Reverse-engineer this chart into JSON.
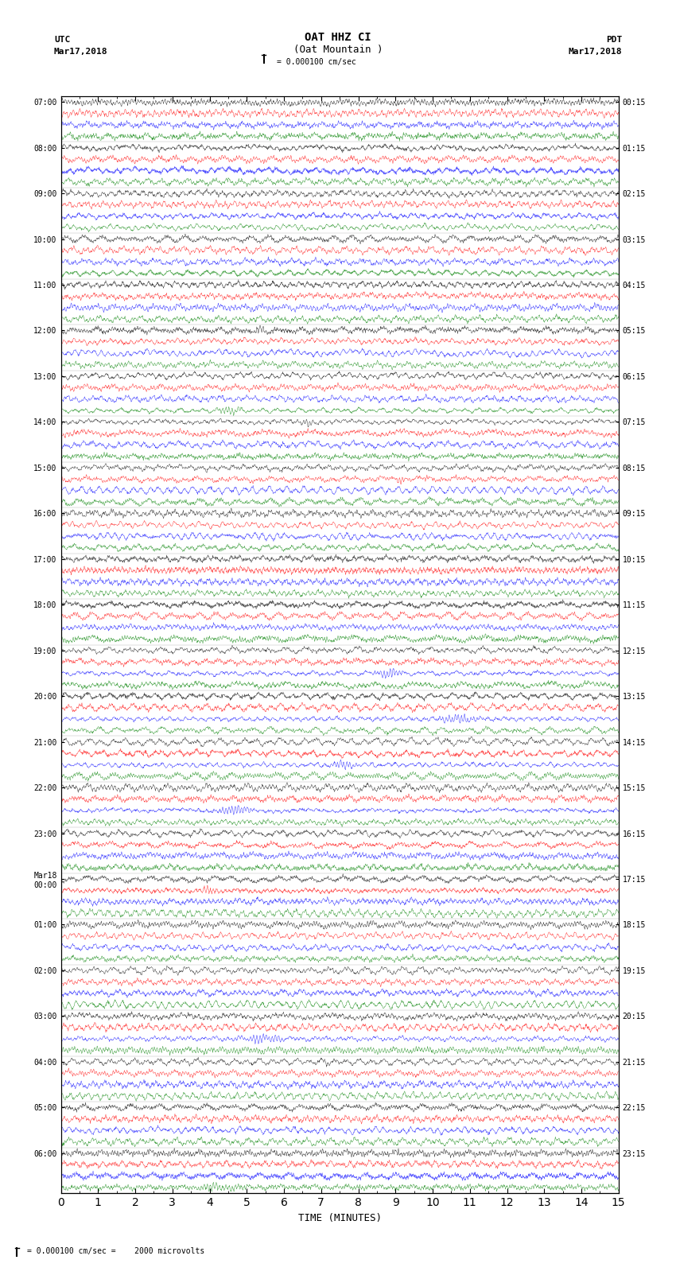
{
  "title_line1": "OAT HHZ CI",
  "title_line2": "(Oat Mountain )",
  "scale_text": "= 0.000100 cm/sec",
  "bottom_text": "= 0.000100 cm/sec =    2000 microvolts",
  "left_label": "UTC",
  "left_date": "Mar17,2018",
  "right_label": "PDT",
  "right_date": "Mar17,2018",
  "xlabel": "TIME (MINUTES)",
  "utc_times": [
    "07:00",
    "",
    "",
    "",
    "08:00",
    "",
    "",
    "",
    "09:00",
    "",
    "",
    "",
    "10:00",
    "",
    "",
    "",
    "11:00",
    "",
    "",
    "",
    "12:00",
    "",
    "",
    "",
    "13:00",
    "",
    "",
    "",
    "14:00",
    "",
    "",
    "",
    "15:00",
    "",
    "",
    "",
    "16:00",
    "",
    "",
    "",
    "17:00",
    "",
    "",
    "",
    "18:00",
    "",
    "",
    "",
    "19:00",
    "",
    "",
    "",
    "20:00",
    "",
    "",
    "",
    "21:00",
    "",
    "",
    "",
    "22:00",
    "",
    "",
    "",
    "23:00",
    "",
    "",
    "",
    "Mar18\n00:00",
    "",
    "",
    "",
    "01:00",
    "",
    "",
    "",
    "02:00",
    "",
    "",
    "",
    "03:00",
    "",
    "",
    "",
    "04:00",
    "",
    "",
    "",
    "05:00",
    "",
    "",
    "",
    "06:00",
    "",
    "",
    ""
  ],
  "pdt_times": [
    "00:15",
    "",
    "",
    "",
    "01:15",
    "",
    "",
    "",
    "02:15",
    "",
    "",
    "",
    "03:15",
    "",
    "",
    "",
    "04:15",
    "",
    "",
    "",
    "05:15",
    "",
    "",
    "",
    "06:15",
    "",
    "",
    "",
    "07:15",
    "",
    "",
    "",
    "08:15",
    "",
    "",
    "",
    "09:15",
    "",
    "",
    "",
    "10:15",
    "",
    "",
    "",
    "11:15",
    "",
    "",
    "",
    "12:15",
    "",
    "",
    "",
    "13:15",
    "",
    "",
    "",
    "14:15",
    "",
    "",
    "",
    "15:15",
    "",
    "",
    "",
    "16:15",
    "",
    "",
    "",
    "17:15",
    "",
    "",
    "",
    "18:15",
    "",
    "",
    "",
    "19:15",
    "",
    "",
    "",
    "20:15",
    "",
    "",
    "",
    "21:15",
    "",
    "",
    "",
    "22:15",
    "",
    "",
    "",
    "23:15",
    "",
    "",
    ""
  ],
  "n_rows": 96,
  "n_cols": 1800,
  "colors": [
    "black",
    "red",
    "blue",
    "green"
  ],
  "bg_color": "white",
  "fig_width": 8.5,
  "fig_height": 16.13,
  "dpi": 100
}
